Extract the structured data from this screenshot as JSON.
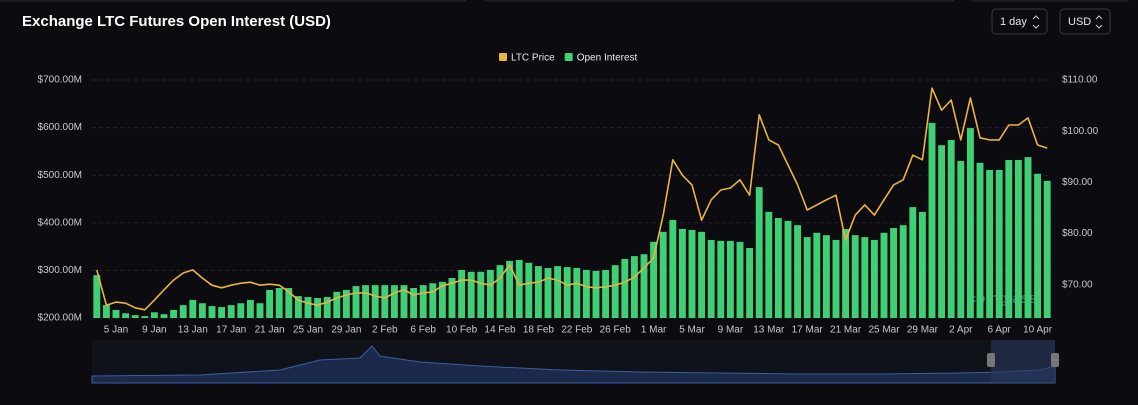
{
  "chart_data": {
    "type": "bar",
    "title": "Exchange LTC Futures Open Interest (USD)",
    "categories": [
      null,
      null,
      "5 Jan",
      null,
      null,
      null,
      "9 Jan",
      null,
      null,
      null,
      "13 Jan",
      null,
      null,
      null,
      "17 Jan",
      null,
      null,
      null,
      "21 Jan",
      null,
      null,
      null,
      "25 Jan",
      null,
      null,
      null,
      "29 Jan",
      null,
      null,
      null,
      "2 Feb",
      null,
      null,
      null,
      "6 Feb",
      null,
      null,
      null,
      "10 Feb",
      null,
      null,
      null,
      "14 Feb",
      null,
      null,
      null,
      "18 Feb",
      null,
      null,
      null,
      "22 Feb",
      null,
      null,
      null,
      "26 Feb",
      null,
      null,
      null,
      "1 Mar",
      null,
      null,
      null,
      "5 Mar",
      null,
      null,
      null,
      "9 Mar",
      null,
      null,
      null,
      "13 Mar",
      null,
      null,
      null,
      "17 Mar",
      null,
      null,
      null,
      "21 Mar",
      null,
      null,
      null,
      "25 Mar",
      null,
      null,
      null,
      "29 Mar",
      null,
      null,
      null,
      "2 Apr",
      null,
      null,
      null,
      "6 Apr",
      null,
      null,
      null,
      "10 Apr",
      null
    ],
    "series": [
      {
        "name": "LTC Price",
        "type": "line",
        "axis": "y2",
        "color": "#e9b43f",
        "values": [
          72.9,
          66.0,
          66.6,
          66.4,
          65.5,
          65.1,
          67.0,
          69.0,
          70.9,
          72.3,
          72.9,
          71.3,
          69.9,
          69.4,
          69.9,
          70.3,
          70.5,
          69.9,
          70.1,
          69.9,
          68.6,
          67.0,
          66.4,
          66.0,
          66.6,
          67.4,
          68.0,
          68.4,
          68.4,
          67.8,
          67.4,
          68.4,
          69.0,
          68.0,
          68.4,
          68.6,
          69.8,
          70.3,
          70.9,
          70.9,
          70.3,
          69.9,
          71.3,
          73.9,
          69.9,
          70.3,
          70.5,
          71.3,
          70.9,
          69.9,
          70.3,
          69.6,
          69.4,
          69.6,
          69.9,
          70.5,
          71.5,
          73.3,
          75.2,
          83.6,
          94.4,
          91.4,
          89.5,
          82.6,
          86.6,
          88.5,
          88.9,
          90.5,
          87.5,
          103.2,
          98.3,
          97.3,
          93.4,
          89.5,
          84.6,
          85.6,
          86.6,
          87.5,
          78.7,
          83.6,
          85.6,
          83.6,
          86.6,
          89.5,
          90.5,
          95.3,
          94.4,
          108.4,
          104.1,
          106.1,
          98.3,
          106.5,
          98.7,
          98.3,
          98.3,
          101.2,
          101.2,
          102.6,
          97.3,
          96.7
        ]
      },
      {
        "name": "Open Interest",
        "type": "bar",
        "color": "#3fcf74",
        "values": [
          290,
          227,
          217,
          210,
          206,
          204,
          212,
          208,
          217,
          227,
          238,
          231,
          225,
          223,
          227,
          231,
          238,
          231,
          259,
          263,
          263,
          246,
          244,
          242,
          244,
          255,
          259,
          267,
          269,
          269,
          269,
          269,
          269,
          263,
          269,
          273,
          276,
          284,
          301,
          297,
          297,
          301,
          311,
          320,
          322,
          316,
          309,
          305,
          309,
          307,
          305,
          301,
          299,
          301,
          311,
          324,
          330,
          334,
          360,
          381,
          406,
          387,
          385,
          381,
          364,
          362,
          362,
          360,
          347,
          475,
          423,
          410,
          404,
          395,
          370,
          379,
          374,
          364,
          387,
          374,
          370,
          364,
          379,
          389,
          395,
          433,
          423,
          610,
          563,
          574,
          530,
          599,
          526,
          511,
          511,
          532,
          532,
          538,
          503,
          488
        ]
      }
    ],
    "ylim": [
      200,
      700
    ],
    "yticks": [
      {
        "value": 200,
        "label": "$200.00M"
      },
      {
        "value": 300,
        "label": "$300.00M"
      },
      {
        "value": 400,
        "label": "$400.00M"
      },
      {
        "value": 500,
        "label": "$500.00M"
      },
      {
        "value": 600,
        "label": "$600.00M"
      },
      {
        "value": 700,
        "label": "$700.00M"
      }
    ],
    "y2lim": [
      63.5,
      110
    ],
    "y2ticks": [
      {
        "value": 70,
        "label": "$70.00"
      },
      {
        "value": 80,
        "label": "$80.00"
      },
      {
        "value": 90,
        "label": "$90.00"
      },
      {
        "value": 100,
        "label": "$100.00"
      },
      {
        "value": 110,
        "label": "$110.00"
      }
    ],
    "grid": true,
    "legend": "top"
  },
  "controls": {
    "interval": "1 day",
    "currency": "USD"
  },
  "watermark": "coinglass"
}
